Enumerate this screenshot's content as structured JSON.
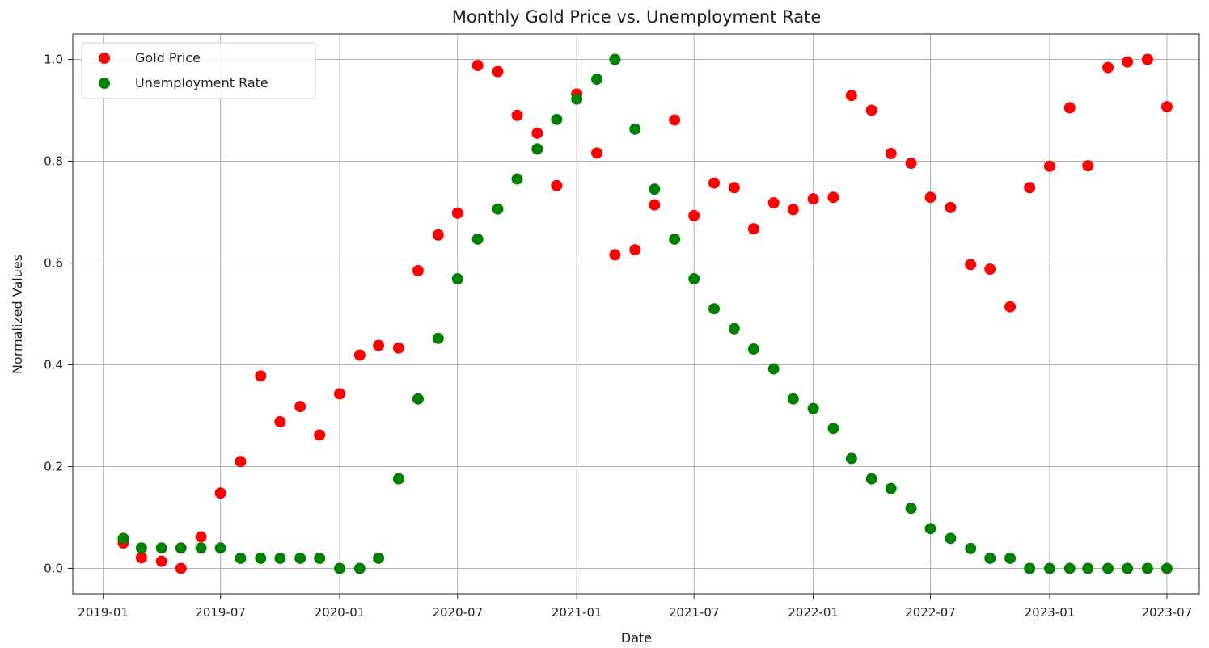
{
  "chart_data": {
    "type": "scatter",
    "title": "Monthly Gold Price vs. Unemployment Rate",
    "xlabel": "Date",
    "ylabel": "Normalized Values",
    "xlim": [
      "2018-11-15",
      "2023-08-20"
    ],
    "ylim": [
      -0.05,
      1.05
    ],
    "x_ticks": [
      "2019-01",
      "2019-07",
      "2020-01",
      "2020-07",
      "2021-01",
      "2021-07",
      "2022-01",
      "2022-07",
      "2023-01",
      "2023-07"
    ],
    "y_ticks": [
      "0.0",
      "0.2",
      "0.4",
      "0.6",
      "0.8",
      "1.0"
    ],
    "grid": true,
    "legend_position": "top-left",
    "x": [
      "2019-02",
      "2019-03",
      "2019-04",
      "2019-05",
      "2019-06",
      "2019-07",
      "2019-08",
      "2019-09",
      "2019-10",
      "2019-11",
      "2019-12",
      "2020-01",
      "2020-02",
      "2020-03",
      "2020-04",
      "2020-05",
      "2020-06",
      "2020-07",
      "2020-08",
      "2020-09",
      "2020-10",
      "2020-11",
      "2020-12",
      "2021-01",
      "2021-02",
      "2021-03",
      "2021-04",
      "2021-05",
      "2021-06",
      "2021-07",
      "2021-08",
      "2021-09",
      "2021-10",
      "2021-11",
      "2021-12",
      "2022-01",
      "2022-02",
      "2022-03",
      "2022-04",
      "2022-05",
      "2022-06",
      "2022-07",
      "2022-08",
      "2022-09",
      "2022-10",
      "2022-11",
      "2022-12",
      "2023-01",
      "2023-02",
      "2023-03",
      "2023-04",
      "2023-05",
      "2023-06",
      "2023-07"
    ],
    "series": [
      {
        "name": "Gold Price",
        "color": "#ff0000",
        "values": [
          0.05,
          0.021,
          0.014,
          0.0,
          0.062,
          0.148,
          0.21,
          0.378,
          0.288,
          0.318,
          0.262,
          0.343,
          0.419,
          0.438,
          0.433,
          0.585,
          0.655,
          0.698,
          0.988,
          0.976,
          0.89,
          0.855,
          0.752,
          0.932,
          0.816,
          0.616,
          0.626,
          0.714,
          0.881,
          0.693,
          0.757,
          0.748,
          0.667,
          0.718,
          0.705,
          0.726,
          0.729,
          0.929,
          0.9,
          0.815,
          0.796,
          0.729,
          0.709,
          0.597,
          0.588,
          0.514,
          0.748,
          0.79,
          0.905,
          0.791,
          0.984,
          0.995,
          1.0,
          0.907
        ]
      },
      {
        "name": "Unemployment Rate",
        "color": "#008000",
        "values": [
          0.059,
          0.04,
          0.04,
          0.04,
          0.04,
          0.04,
          0.02,
          0.02,
          0.02,
          0.02,
          0.02,
          0.0,
          0.0,
          0.02,
          0.176,
          0.333,
          0.452,
          0.569,
          0.647,
          0.706,
          0.765,
          0.824,
          0.882,
          0.922,
          0.961,
          1.0,
          0.863,
          0.745,
          0.647,
          0.569,
          0.51,
          0.471,
          0.431,
          0.392,
          0.333,
          0.314,
          0.275,
          0.216,
          0.176,
          0.157,
          0.118,
          0.078,
          0.059,
          0.039,
          0.02,
          0.02,
          0.0,
          0.0,
          0.0,
          0.0,
          0.0,
          0.0,
          0.0,
          0.0
        ]
      }
    ]
  }
}
